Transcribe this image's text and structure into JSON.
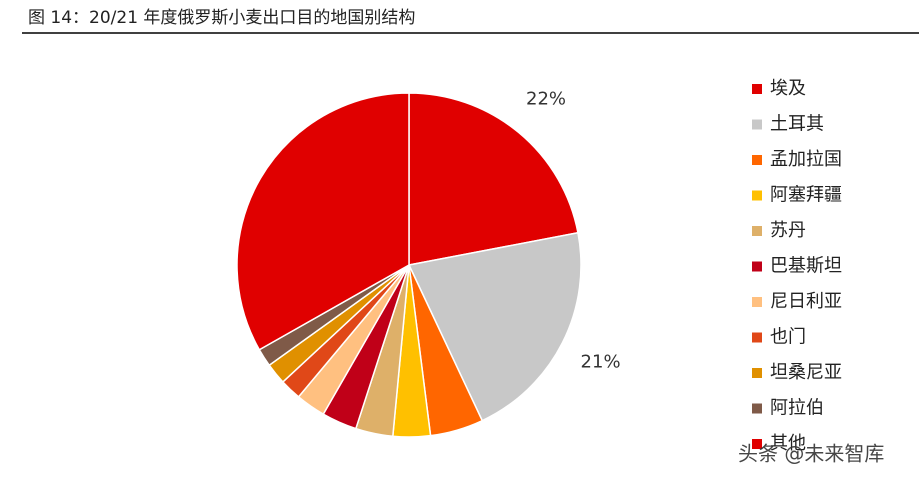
{
  "chart_data": {
    "type": "pie",
    "title": "图 14：20/21 年度俄罗斯小麦出口目的地国别结构",
    "categories": [
      "埃及",
      "土耳其",
      "孟加拉国",
      "阿塞拜疆",
      "苏丹",
      "巴基斯坦",
      "尼日利亚",
      "也门",
      "坦桑尼亚",
      "阿拉伯",
      "其他"
    ],
    "values": [
      22,
      21,
      5,
      3.5,
      3.5,
      3.3,
      2.8,
      2,
      2,
      1.7,
      33.2
    ],
    "value_labels": [
      "22%",
      "21%",
      null,
      null,
      null,
      null,
      null,
      null,
      null,
      null,
      null
    ],
    "colors": [
      "#e00000",
      "#c8c8c8",
      "#ff6600",
      "#ffc000",
      "#deb069",
      "#c00018",
      "#ffc080",
      "#e04818",
      "#e09000",
      "#7f5a48",
      "#e00000"
    ],
    "legend": "right",
    "watermark": "头条 @未来智库"
  }
}
